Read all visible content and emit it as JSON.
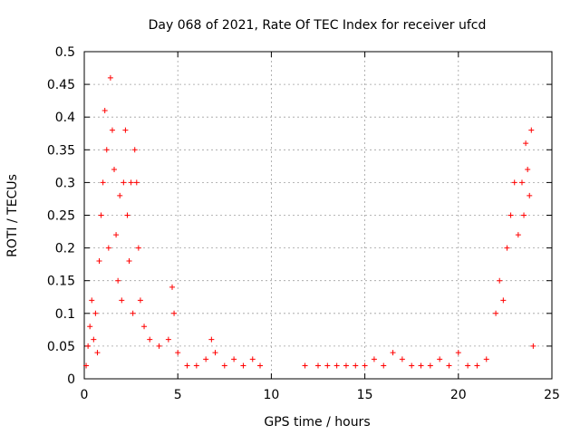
{
  "chart_data": {
    "type": "scatter",
    "title": "Day 068 of 2021, Rate Of TEC Index for receiver ufcd",
    "xlabel": "GPS time / hours",
    "ylabel": "ROTI / TECUs",
    "xlim": [
      0,
      25
    ],
    "ylim": [
      0,
      0.5
    ],
    "xticks": [
      0,
      5,
      10,
      15,
      20,
      25
    ],
    "yticks": [
      0,
      0.05,
      0.1,
      0.15,
      0.2,
      0.25,
      0.3,
      0.35,
      0.4,
      0.45,
      0.5
    ],
    "xtick_labels": [
      "0",
      "5",
      "10",
      "15",
      "20",
      "25"
    ],
    "ytick_labels": [
      "0",
      "0.05",
      "0.1",
      "0.15",
      "0.2",
      "0.25",
      "0.3",
      "0.35",
      "0.4",
      "0.45",
      "0.5"
    ],
    "grid": true,
    "marker": "+",
    "color": "#ff0000",
    "series": [
      {
        "name": "ROTI",
        "points": [
          [
            0.1,
            0.02
          ],
          [
            0.2,
            0.05
          ],
          [
            0.3,
            0.08
          ],
          [
            0.4,
            0.12
          ],
          [
            0.5,
            0.06
          ],
          [
            0.6,
            0.1
          ],
          [
            0.7,
            0.04
          ],
          [
            0.8,
            0.18
          ],
          [
            0.9,
            0.25
          ],
          [
            1.0,
            0.3
          ],
          [
            1.1,
            0.41
          ],
          [
            1.2,
            0.35
          ],
          [
            1.3,
            0.2
          ],
          [
            1.4,
            0.46
          ],
          [
            1.5,
            0.38
          ],
          [
            1.6,
            0.32
          ],
          [
            1.7,
            0.22
          ],
          [
            1.8,
            0.15
          ],
          [
            1.9,
            0.28
          ],
          [
            2.0,
            0.12
          ],
          [
            2.1,
            0.3
          ],
          [
            2.2,
            0.38
          ],
          [
            2.3,
            0.25
          ],
          [
            2.4,
            0.18
          ],
          [
            2.5,
            0.3
          ],
          [
            2.6,
            0.1
          ],
          [
            2.7,
            0.35
          ],
          [
            2.8,
            0.3
          ],
          [
            2.9,
            0.2
          ],
          [
            3.0,
            0.12
          ],
          [
            3.2,
            0.08
          ],
          [
            3.5,
            0.06
          ],
          [
            4.0,
            0.05
          ],
          [
            4.5,
            0.06
          ],
          [
            4.7,
            0.14
          ],
          [
            4.8,
            0.1
          ],
          [
            5.0,
            0.04
          ],
          [
            5.5,
            0.02
          ],
          [
            6.0,
            0.02
          ],
          [
            6.5,
            0.03
          ],
          [
            6.8,
            0.06
          ],
          [
            7.0,
            0.04
          ],
          [
            7.5,
            0.02
          ],
          [
            8.0,
            0.03
          ],
          [
            8.5,
            0.02
          ],
          [
            9.0,
            0.03
          ],
          [
            9.4,
            0.02
          ],
          [
            11.8,
            0.02
          ],
          [
            12.5,
            0.02
          ],
          [
            13.0,
            0.02
          ],
          [
            13.5,
            0.02
          ],
          [
            14.0,
            0.02
          ],
          [
            14.5,
            0.02
          ],
          [
            15.0,
            0.02
          ],
          [
            15.5,
            0.03
          ],
          [
            16.0,
            0.02
          ],
          [
            16.5,
            0.04
          ],
          [
            17.0,
            0.03
          ],
          [
            17.5,
            0.02
          ],
          [
            18.0,
            0.02
          ],
          [
            18.5,
            0.02
          ],
          [
            19.0,
            0.03
          ],
          [
            19.5,
            0.02
          ],
          [
            20.0,
            0.04
          ],
          [
            20.5,
            0.02
          ],
          [
            21.0,
            0.02
          ],
          [
            21.5,
            0.03
          ],
          [
            22.0,
            0.1
          ],
          [
            22.2,
            0.15
          ],
          [
            22.4,
            0.12
          ],
          [
            22.6,
            0.2
          ],
          [
            22.8,
            0.25
          ],
          [
            23.0,
            0.3
          ],
          [
            23.2,
            0.22
          ],
          [
            23.4,
            0.3
          ],
          [
            23.5,
            0.25
          ],
          [
            23.6,
            0.36
          ],
          [
            23.7,
            0.32
          ],
          [
            23.8,
            0.28
          ],
          [
            23.9,
            0.38
          ],
          [
            24.0,
            0.05
          ]
        ]
      }
    ]
  }
}
